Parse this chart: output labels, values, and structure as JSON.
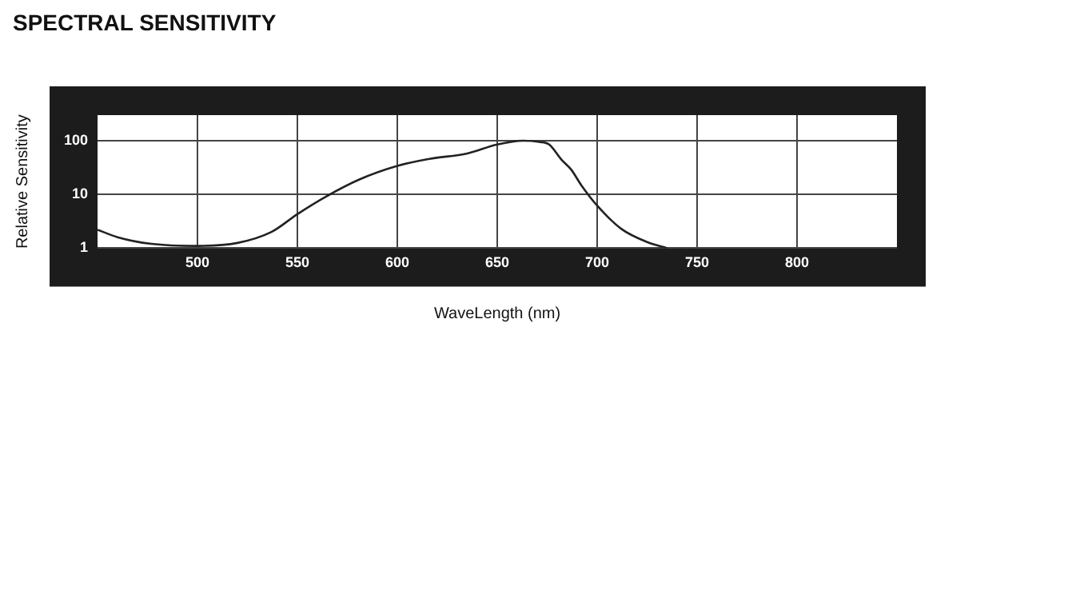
{
  "chart_data": {
    "type": "line",
    "title": "SPECTRAL SENSITIVITY",
    "xlabel": "WaveLength (nm)",
    "ylabel": "Relative Sensitivity",
    "x": [
      450,
      460,
      477,
      500,
      520,
      537,
      550,
      564,
      581,
      600,
      616,
      635,
      650,
      663,
      671,
      676,
      682,
      687,
      692,
      700,
      712,
      725,
      735
    ],
    "series": [
      {
        "color": "#222222",
        "values": [
          2.2,
          1.6,
          1.2,
          1.1,
          1.25,
          2.0,
          4.3,
          9,
          19,
          34,
          46,
          58,
          85,
          100,
          95,
          85,
          45,
          29,
          15,
          6.2,
          2.3,
          1.3,
          1.0
        ]
      }
    ],
    "xlim": [
      450,
      850
    ],
    "xticks": [
      500,
      550,
      600,
      650,
      700,
      750,
      800
    ],
    "log": "y",
    "ylim": [
      1,
      300
    ],
    "yticks": [
      1,
      10,
      100
    ],
    "grid": true,
    "marker": "none",
    "line_style": "solid"
  }
}
